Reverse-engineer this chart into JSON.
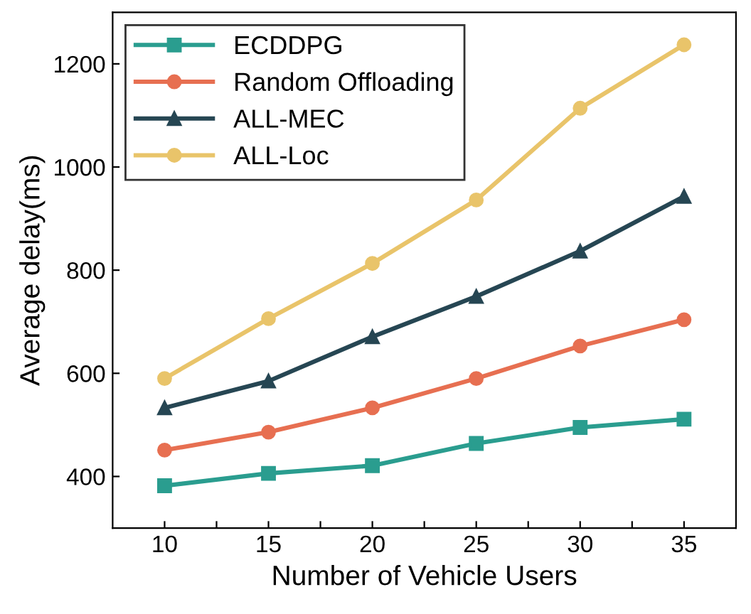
{
  "chart_data": {
    "type": "line",
    "xlabel": "Number of Vehicle Users",
    "ylabel": "Average delay(ms)",
    "x": [
      10,
      15,
      20,
      25,
      30,
      35
    ],
    "xlim": [
      7.5,
      37.5
    ],
    "xticks": [
      10,
      {
        "value": 12.5,
        "label": null
      },
      15,
      {
        "value": 17.5,
        "label": null
      },
      20,
      {
        "value": 22.5,
        "label": null
      },
      25,
      {
        "value": 27.5,
        "label": null
      },
      30,
      {
        "value": 32.5,
        "label": null
      },
      35
    ],
    "ylim": [
      300,
      1300
    ],
    "yticks": [
      400,
      600,
      800,
      1000,
      1200
    ],
    "grid": false,
    "legend": "top left",
    "line_style": "solid",
    "series": [
      {
        "name": "ECDDPG",
        "color": "#2a9d8f",
        "marker": "square",
        "values": [
          382,
          406,
          421,
          464,
          495,
          511
        ]
      },
      {
        "name": "Random Offloading",
        "color": "#e76f51",
        "marker": "circle",
        "values": [
          451,
          486,
          533,
          590,
          653,
          704
        ]
      },
      {
        "name": "ALL-MEC",
        "color": "#264653",
        "marker": "triangle",
        "values": [
          533,
          585,
          671,
          749,
          837,
          943
        ]
      },
      {
        "name": "ALL-Loc",
        "color": "#e9c46a",
        "marker": "circle",
        "values": [
          590,
          706,
          813,
          936,
          1114,
          1237
        ]
      }
    ]
  }
}
